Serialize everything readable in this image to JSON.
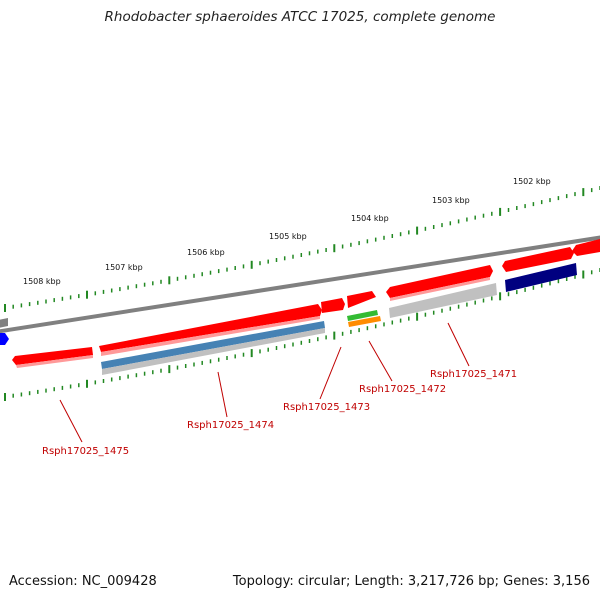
{
  "title": "Rhodobacter sphaeroides ATCC 17025, complete genome",
  "footer": {
    "accession": "Accession: NC_009428",
    "topology": "Topology: circular; Length: 3,217,726 bp; Genes: 3,156"
  },
  "scale": {
    "unit": "kbp",
    "labels": [
      "1502 kbp",
      "1503 kbp",
      "1504 kbp",
      "1505 kbp",
      "1506 kbp",
      "1507 kbp",
      "1508 kbp"
    ]
  },
  "genes": [
    "Rsph17025_1471",
    "Rsph17025_1472",
    "Rsph17025_1473",
    "Rsph17025_1474",
    "Rsph17025_1475"
  ],
  "colors": {
    "backbone": "#808080",
    "cds": "#ff0000",
    "cds_dark": "#cc0000",
    "gene_gray": "#c0c0c0",
    "steelblue": "#4682b4",
    "navy": "#000080",
    "blue": "#0000ff",
    "green": "#33bb33",
    "orange": "#ff8c00",
    "ticks": "#228822",
    "labels": "#c00000"
  }
}
